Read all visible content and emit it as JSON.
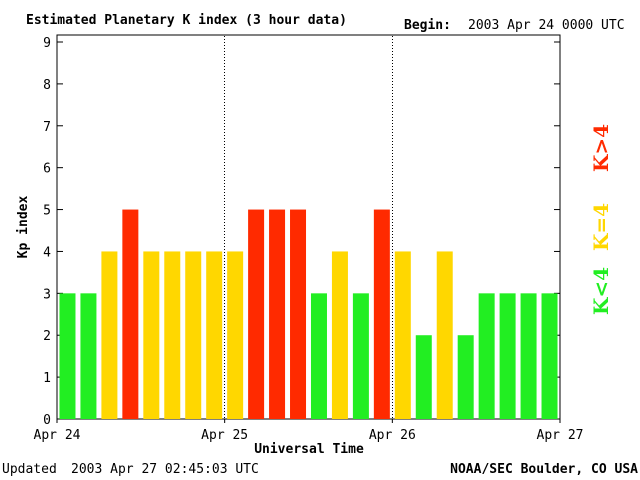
{
  "chart_data": {
    "type": "bar",
    "title": "Estimated Planetary K index (3 hour data)",
    "begin_label": "Begin:",
    "begin_value": "2003 Apr 24 0000 UTC",
    "ylabel": "Kp index",
    "xlabel": "Universal Time",
    "ylim": [
      0,
      9
    ],
    "yticks": [
      "0",
      "1",
      "2",
      "3",
      "4",
      "5",
      "6",
      "7",
      "8",
      "9"
    ],
    "x_ticks": [
      "Apr 24",
      "Apr 25",
      "Apr 26",
      "Apr 27"
    ],
    "values": [
      3,
      3,
      4,
      5,
      4,
      4,
      4,
      4,
      4,
      5,
      5,
      5,
      3,
      4,
      3,
      5,
      4,
      2,
      4,
      2,
      3,
      3,
      3,
      3
    ],
    "colors": {
      "low": "#22ee22",
      "mid": "#ffd700",
      "high": "#ff2a00"
    },
    "legend": [
      {
        "label": "K<4",
        "color": "#22ee22"
      },
      {
        "label": "K=4",
        "color": "#ffd700"
      },
      {
        "label": "K>4",
        "color": "#ff2a00"
      }
    ]
  },
  "footer": {
    "updated_label": "Updated",
    "updated_value": "2003 Apr 27 02:45:03 UTC",
    "source": "NOAA/SEC Boulder, CO USA"
  }
}
